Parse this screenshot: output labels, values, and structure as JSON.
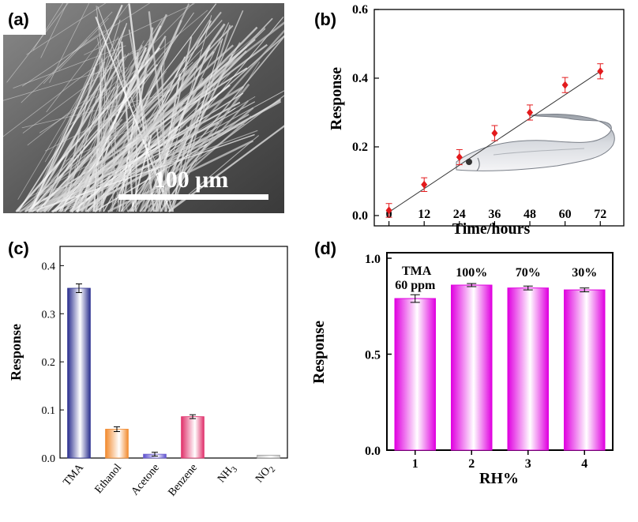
{
  "panels": {
    "a": {
      "label": "(a)",
      "scale_text": "100 μm"
    },
    "b": {
      "label": "(b)"
    },
    "c": {
      "label": "(c)"
    },
    "d": {
      "label": "(d)"
    }
  },
  "chart_data": [
    {
      "panel": "b",
      "type": "scatter",
      "xlabel": "Time/hours",
      "ylabel": "Response",
      "xlim": [
        -5,
        80
      ],
      "ylim": [
        -0.03,
        0.6
      ],
      "x_ticks": [
        0,
        12,
        24,
        36,
        48,
        60,
        72
      ],
      "y_ticks": [
        0.0,
        0.2,
        0.4,
        0.6
      ],
      "x": [
        0,
        12,
        24,
        36,
        48,
        60,
        72
      ],
      "y": [
        0.015,
        0.09,
        0.17,
        0.24,
        0.3,
        0.38,
        0.42
      ],
      "errors": [
        0.02,
        0.02,
        0.022,
        0.022,
        0.022,
        0.022,
        0.022
      ],
      "fit_line": {
        "x": [
          0,
          72
        ],
        "y": [
          0.01,
          0.42
        ]
      },
      "marker_color": "#e31a1c",
      "grid": false
    },
    {
      "panel": "c",
      "type": "bar",
      "ylabel": "Response",
      "ylim": [
        0,
        0.44
      ],
      "y_ticks": [
        0.0,
        0.1,
        0.2,
        0.3,
        0.4
      ],
      "categories": [
        "TMA",
        "Ethanol",
        "Acetone",
        "Benzene",
        "NH3",
        "NO2"
      ],
      "category_display": [
        {
          "main": "TMA",
          "sub": ""
        },
        {
          "main": "Ethanol",
          "sub": ""
        },
        {
          "main": "Acetone",
          "sub": ""
        },
        {
          "main": "Benzene",
          "sub": ""
        },
        {
          "main": "NH",
          "sub": "3"
        },
        {
          "main": "NO",
          "sub": "2"
        }
      ],
      "values": [
        0.353,
        0.06,
        0.008,
        0.086,
        0.0,
        0.006
      ],
      "errors": [
        0.009,
        0.005,
        0.004,
        0.004,
        0,
        0
      ],
      "colors": [
        "#2b2f8f",
        "#f28a2e",
        "#6a5acd",
        "#e0306a",
        "#999999",
        "#999999"
      ],
      "grid": false
    },
    {
      "panel": "d",
      "type": "bar",
      "xlabel": "RH%",
      "ylabel": "Response",
      "ylim": [
        0,
        1.0
      ],
      "y_ticks": [
        0.0,
        0.5,
        1.0
      ],
      "categories": [
        "1",
        "2",
        "3",
        "4"
      ],
      "values": [
        0.79,
        0.86,
        0.845,
        0.835
      ],
      "errors": [
        0.02,
        0.008,
        0.01,
        0.01
      ],
      "bar_labels": [
        "60 ppm",
        "100%",
        "70%",
        "30%"
      ],
      "annotation": "TMA",
      "color": "#e000e0",
      "grid": false
    }
  ]
}
